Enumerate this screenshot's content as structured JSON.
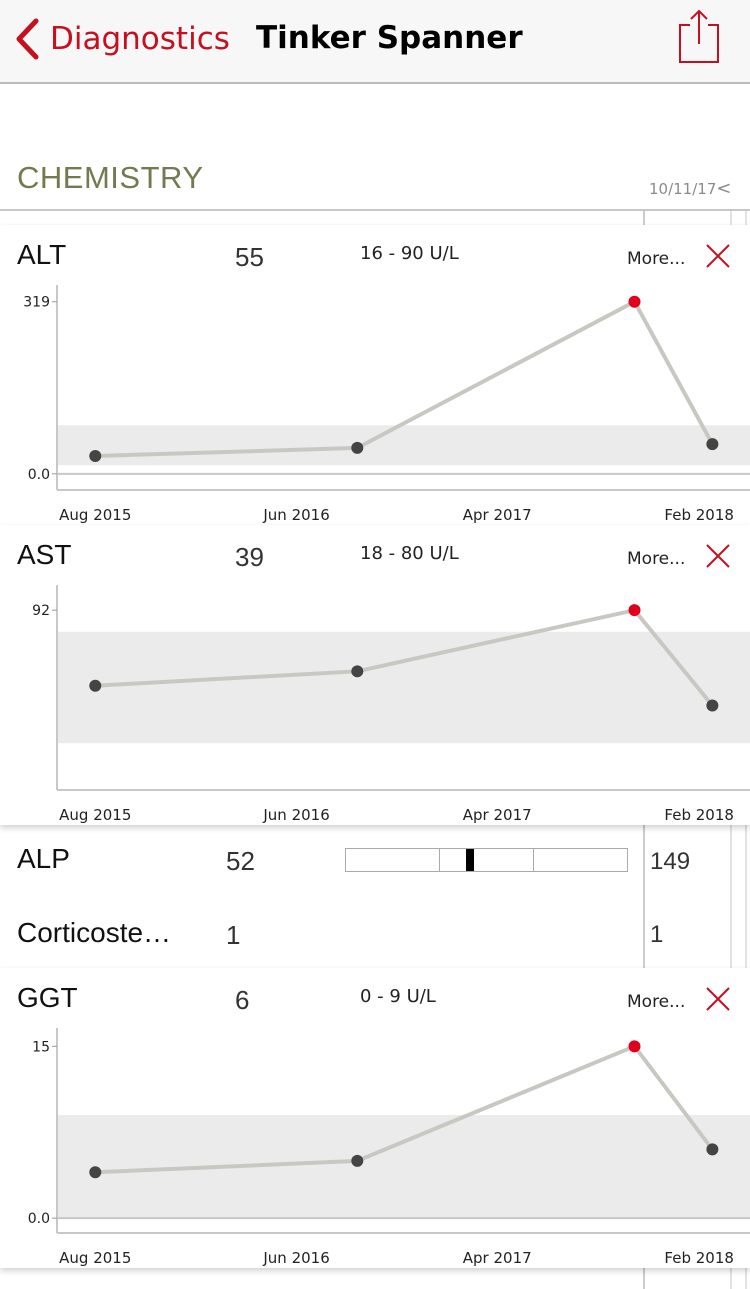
{
  "nav": {
    "back_label": "Diagnostics",
    "title": "Tinker Spanner",
    "share_icon": "share-icon"
  },
  "section": {
    "title": "CHEMISTRY",
    "date": "10/11/17",
    "prev_icon": "<"
  },
  "colors": {
    "accent": "#c4101f",
    "section": "#737a4f",
    "line": "#c8c8c3",
    "point": "#444444",
    "highlight": "#e0001b",
    "band": "#ebebeb"
  },
  "chart_data": [
    {
      "type": "line",
      "title": "ALT",
      "value": "55",
      "reference": "16 - 90 U/L",
      "more": "More...",
      "ref_low": 16,
      "ref_high": 90,
      "ylim": [
        -30,
        350
      ],
      "yticks": [
        {
          "v": 0,
          "label": "0.0"
        },
        {
          "v": 319,
          "label": "319"
        }
      ],
      "xlim": [
        "2015-06-04",
        "2018-04-19"
      ],
      "xticks": [
        {
          "d": "2015-08-01",
          "label": "Aug 2015"
        },
        {
          "d": "2016-06-01",
          "label": "Jun 2016"
        },
        {
          "d": "2017-04-01",
          "label": "Apr 2017"
        },
        {
          "d": "2018-02-01",
          "label": "Feb 2018"
        }
      ],
      "points": [
        {
          "d": "2015-08-01",
          "v": 33
        },
        {
          "d": "2016-09-01",
          "v": 48
        },
        {
          "d": "2017-10-26",
          "v": 319,
          "highlight": true
        },
        {
          "d": "2018-02-21",
          "v": 55
        }
      ]
    },
    {
      "type": "line",
      "title": "AST",
      "value": "39",
      "reference": "18 - 80 U/L",
      "more": "More...",
      "ref_low": 18,
      "ref_high": 80,
      "ylim": [
        -8,
        106
      ],
      "yticks": [
        {
          "v": 92,
          "label": "92"
        }
      ],
      "xlim": [
        "2015-06-04",
        "2018-04-19"
      ],
      "xticks": [
        {
          "d": "2015-08-01",
          "label": "Aug 2015"
        },
        {
          "d": "2016-06-01",
          "label": "Jun 2016"
        },
        {
          "d": "2017-04-01",
          "label": "Apr 2017"
        },
        {
          "d": "2018-02-01",
          "label": "Feb 2018"
        }
      ],
      "points": [
        {
          "d": "2015-08-01",
          "v": 50
        },
        {
          "d": "2016-09-01",
          "v": 58
        },
        {
          "d": "2017-10-26",
          "v": 92,
          "highlight": true
        },
        {
          "d": "2018-02-21",
          "v": 39
        }
      ]
    },
    {
      "type": "line",
      "title": "GGT",
      "value": "6",
      "reference": "0 - 9 U/L",
      "more": "More...",
      "ref_low": 0,
      "ref_high": 9,
      "ylim": [
        -1.3,
        16.6
      ],
      "yticks": [
        {
          "v": 0,
          "label": "0.0"
        },
        {
          "v": 15,
          "label": "15"
        }
      ],
      "xlim": [
        "2015-06-04",
        "2018-04-19"
      ],
      "xticks": [
        {
          "d": "2015-08-01",
          "label": "Aug 2015"
        },
        {
          "d": "2016-06-01",
          "label": "Jun 2016"
        },
        {
          "d": "2017-04-01",
          "label": "Apr 2017"
        },
        {
          "d": "2018-02-01",
          "label": "Feb 2018"
        }
      ],
      "points": [
        {
          "d": "2015-08-01",
          "v": 4
        },
        {
          "d": "2016-09-01",
          "v": 5
        },
        {
          "d": "2017-10-26",
          "v": 15,
          "highlight": true
        },
        {
          "d": "2018-02-21",
          "v": 6
        }
      ]
    }
  ],
  "rows": [
    {
      "name": "ALP",
      "value": "52",
      "previous": "149",
      "range_position": 0.44
    },
    {
      "name": "Corticoste…",
      "value": "1",
      "previous": "1"
    }
  ]
}
